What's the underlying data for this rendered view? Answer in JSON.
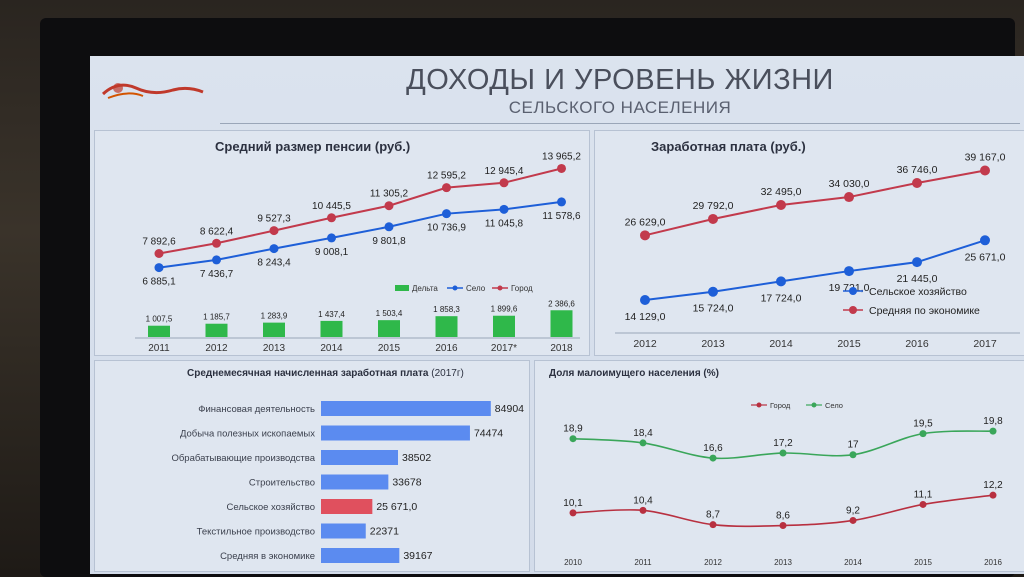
{
  "header": {
    "title": "ДОХОДЫ И УРОВЕНЬ ЖИЗНИ",
    "subtitle": "СЕЛЬСКОГО НАСЕЛЕНИЯ"
  },
  "colors": {
    "city": "#c23a4c",
    "village": "#1e5fd8",
    "delta": "#2fb84a",
    "bar_blue": "#5b8bf0",
    "bar_red": "#e0505e",
    "green_line": "#3aa65a",
    "red_line": "#b83040"
  },
  "chart_data": [
    {
      "id": "pension",
      "type": "line",
      "title": "Средний размер пенсии (руб.)",
      "categories": [
        "2011",
        "2012",
        "2013",
        "2014",
        "2015",
        "2016",
        "2017*",
        "2018"
      ],
      "legend": [
        "Дельта",
        "Село",
        "Город"
      ],
      "series": [
        {
          "name": "Город",
          "values": [
            7892.6,
            8622.4,
            9527.3,
            10445.5,
            11305.2,
            12595.2,
            12945.4,
            13965.2
          ],
          "labels": [
            "7 892,6",
            "8 622,4",
            "9 527,3",
            "10 445,5",
            "11 305,2",
            "12 595,2",
            "12 945,4",
            "13 965,2"
          ]
        },
        {
          "name": "Село",
          "values": [
            6885.1,
            7436.7,
            8243.4,
            9008.1,
            9801.8,
            10736.9,
            11045.8,
            11578.6
          ],
          "labels": [
            "6 885,1",
            "7 436,7",
            "8 243,4",
            "9 008,1",
            "9 801,8",
            "10 736,9",
            "11 045,8",
            "11 578,6"
          ]
        },
        {
          "name": "Дельта",
          "type": "bar",
          "values": [
            1007.5,
            1185.7,
            1283.9,
            1437.4,
            1503.4,
            1858.3,
            1899.6,
            2386.6
          ],
          "labels": [
            "1 007,5",
            "1 185,7",
            "1 283,9",
            "1 437,4",
            "1 503,4",
            "1 858,3",
            "1 899,6",
            "2 386,6"
          ]
        }
      ]
    },
    {
      "id": "salary",
      "type": "line",
      "title": "Заработная плата (руб.)",
      "categories": [
        "2012",
        "2013",
        "2014",
        "2015",
        "2016",
        "2017"
      ],
      "legend": [
        "Сельское хозяйство",
        "Средняя по экономике"
      ],
      "series": [
        {
          "name": "Средняя по экономике",
          "values": [
            26629.0,
            29792.0,
            32495.0,
            34030.0,
            36746.0,
            39167.0
          ],
          "labels": [
            "26 629,0",
            "29 792,0",
            "32 495,0",
            "34 030,0",
            "36 746,0",
            "39 167,0"
          ]
        },
        {
          "name": "Сельское хозяйство",
          "values": [
            14129.0,
            15724.0,
            17724.0,
            19721.0,
            21445.0,
            25671.0
          ],
          "labels": [
            "14 129,0",
            "15 724,0",
            "17 724,0",
            "19 721,0",
            "21 445,0",
            "25 671,0"
          ]
        }
      ]
    },
    {
      "id": "sector",
      "type": "bar",
      "title": "Среднемесячная начисленная заработная плата",
      "title_suffix": "(2017г)",
      "categories": [
        "Финансовая деятельность",
        "Добыча полезных ископаемых",
        "Обрабатывающие производства",
        "Строительство",
        "Сельское хозяйство",
        "Текстильное производство",
        "Средняя в экономике"
      ],
      "values": [
        84904,
        74474,
        38502,
        33678,
        25671,
        22371,
        39167
      ],
      "labels": [
        "84904",
        "74474",
        "38502",
        "33678",
        "25 671,0",
        "22371",
        "39167"
      ],
      "highlight_index": 4
    },
    {
      "id": "poverty",
      "type": "line",
      "title": "Доля малоимущего населения (%)",
      "categories": [
        "2010",
        "2011",
        "2012",
        "2013",
        "2014",
        "2015",
        "2016"
      ],
      "legend": [
        "Город",
        "Село"
      ],
      "series": [
        {
          "name": "Село",
          "values": [
            18.9,
            18.4,
            16.6,
            17.2,
            17,
            19.5,
            19.8
          ],
          "labels": [
            "18,9",
            "18,4",
            "16,6",
            "17,2",
            "17",
            "19,5",
            "19,8"
          ]
        },
        {
          "name": "Город",
          "values": [
            10.1,
            10.4,
            8.7,
            8.6,
            9.2,
            11.1,
            12.2
          ],
          "labels": [
            "10,1",
            "10,4",
            "8,7",
            "8,6",
            "9,2",
            "11,1",
            "12,2"
          ]
        }
      ]
    }
  ]
}
